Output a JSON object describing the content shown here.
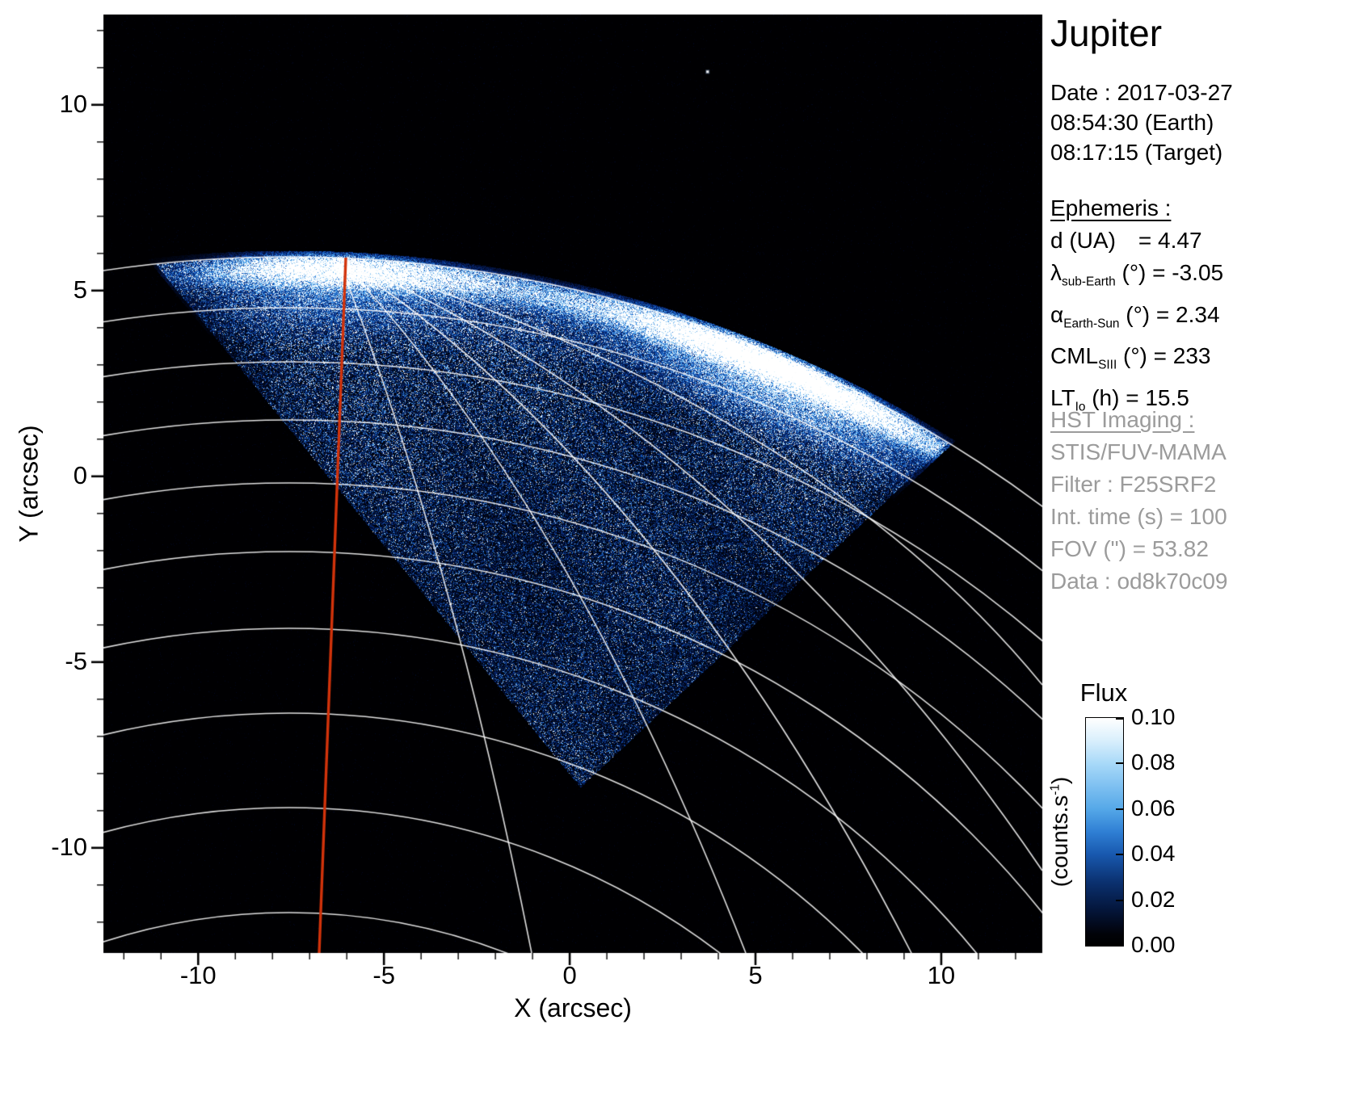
{
  "title": "Jupiter",
  "date_block": {
    "line1": "Date : 2017-03-27",
    "line2": "08:54:30 (Earth)",
    "line3": "08:17:15 (Target)"
  },
  "ephemeris": {
    "heading": "Ephemeris :",
    "d": {
      "label": "d (UA)",
      "value": "= 4.47"
    },
    "lambda": {
      "pre": "λ",
      "sub": "sub-Earth",
      "post": " (°) = -3.05"
    },
    "alpha": {
      "pre": "α",
      "sub": "Earth-Sun",
      "post": " (°) = 2.34"
    },
    "cml": {
      "pre": "CML",
      "sub": "SIII",
      "post": " (°) = 233"
    },
    "lt": {
      "pre": "LT",
      "sub": "Io",
      "post": " (h) = 15.5"
    }
  },
  "hst": {
    "heading": "HST Imaging :",
    "instrument": "STIS/FUV-MAMA",
    "filter": "Filter : F25SRF2",
    "int_time": "Int. time (s) = 100",
    "fov": "FOV (\") = 53.82",
    "data": "Data : od8k70c09"
  },
  "colorbar": {
    "title": "Flux",
    "unit_pre": "(counts.s",
    "unit_sup": "-1",
    "unit_post": ")",
    "ticks": [
      "0.10",
      "0.08",
      "0.06",
      "0.04",
      "0.02",
      "0.00"
    ]
  },
  "axes": {
    "xlabel": "X (arcsec)",
    "ylabel": "Y (arcsec)"
  },
  "chart_data": {
    "type": "heatmap",
    "title": "Jupiter",
    "xlabel": "X (arcsec)",
    "ylabel": "Y (arcsec)",
    "xlim": [
      -12.55,
      12.72
    ],
    "ylim": [
      -12.83,
      12.43
    ],
    "xticks": [
      -10,
      -5,
      0,
      5,
      10
    ],
    "yticks": [
      10,
      5,
      0,
      -5,
      -10
    ],
    "minor_tick_step": 1,
    "grid": false,
    "background": "black sky",
    "colorbar": {
      "label": "Flux (counts.s^-1)",
      "min": 0.0,
      "max": 0.1,
      "tick_values": [
        0.0,
        0.02,
        0.04,
        0.06,
        0.08,
        0.1
      ],
      "colormap": "black-blue-white"
    },
    "features": [
      {
        "name": "stis-fov-data-wedge",
        "desc": "corner of rotated square STIS FOV filled with blue photon-noise speckle",
        "apex_arcsec": [
          0.3,
          -8.4
        ],
        "left_corner_arcsec": [
          -11.2,
          5.7
        ],
        "right_corner_arcsec": [
          10.2,
          0.9
        ]
      },
      {
        "name": "auroral-main-oval-emission",
        "desc": "bright FUV auroral arc along the northern limb",
        "x_range_arcsec": [
          -8,
          9.5
        ],
        "brightest_arcsec": [
          5.7,
          3.2
        ]
      },
      {
        "name": "secondary-bright-streak",
        "desc": "bright streak at upper-left limb",
        "x_range_arcsec": [
          -10.5,
          -5
        ],
        "y_arcsec": 5.9
      },
      {
        "name": "planet-graticule",
        "desc": "white planetocentric latitude/longitude grid of Jupiter",
        "color": "#ffffff"
      },
      {
        "name": "cml-meridian-line",
        "desc": "central meridian longitude marker",
        "color": "#d2330b",
        "x_at_y0_arcsec": -6.3
      },
      {
        "name": "background-star",
        "arcsec": [
          3.7,
          10.9
        ]
      }
    ]
  }
}
